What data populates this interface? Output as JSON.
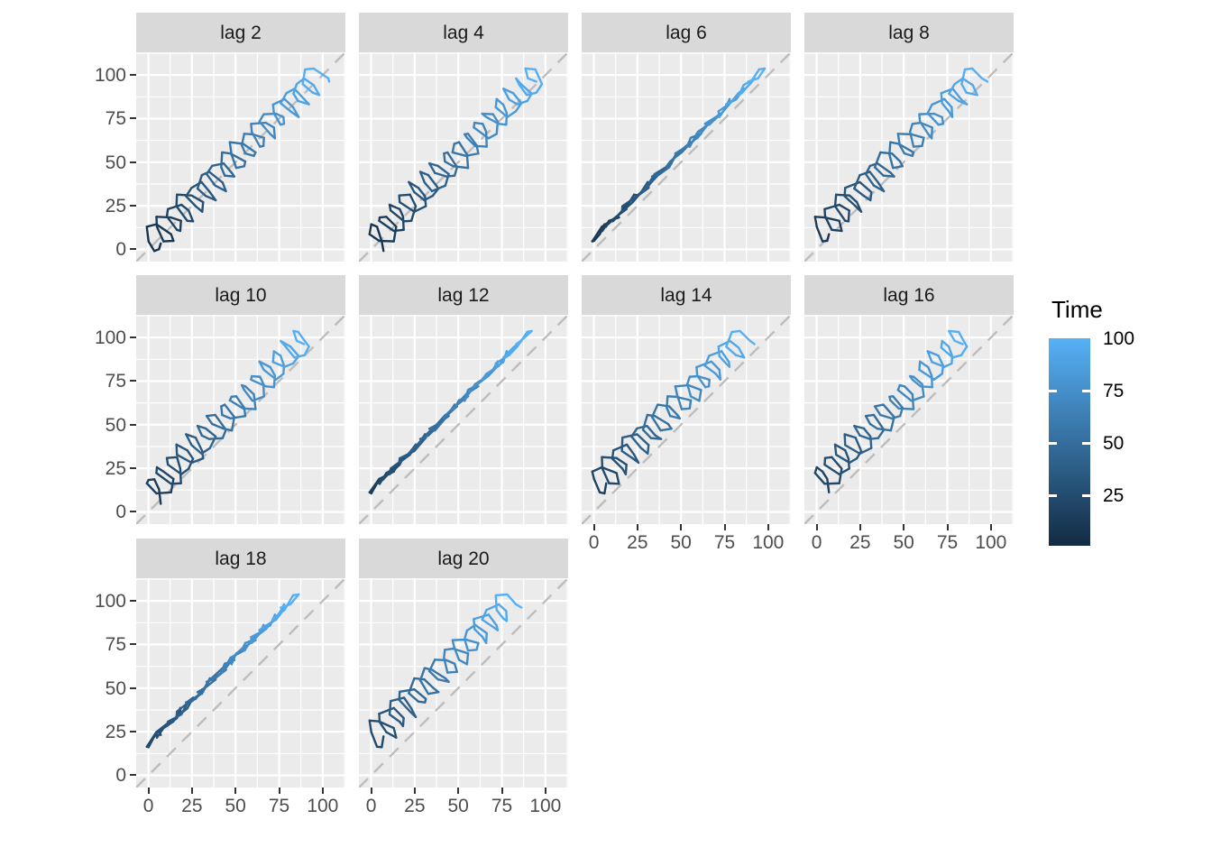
{
  "chart_data": {
    "type": "line",
    "subtype": "lag-plot-matrix",
    "title": "",
    "xlabel": "",
    "ylabel": "",
    "grid": true,
    "facets": [
      {
        "label": "lag 2",
        "lag": 2
      },
      {
        "label": "lag 4",
        "lag": 4
      },
      {
        "label": "lag 6",
        "lag": 6
      },
      {
        "label": "lag 8",
        "lag": 8
      },
      {
        "label": "lag 10",
        "lag": 10
      },
      {
        "label": "lag 12",
        "lag": 12
      },
      {
        "label": "lag 14",
        "lag": 14
      },
      {
        "label": "lag 16",
        "lag": 16
      },
      {
        "label": "lag 18",
        "lag": 18
      },
      {
        "label": "lag 20",
        "lag": 20
      }
    ],
    "time": [
      1,
      2,
      3,
      4,
      5,
      6,
      7,
      8,
      9,
      10,
      11,
      12,
      13,
      14,
      15,
      16,
      17,
      18,
      19,
      20,
      21,
      22,
      23,
      24,
      25,
      26,
      27,
      28,
      29,
      30,
      31,
      32,
      33,
      34,
      35,
      36,
      37,
      38,
      39,
      40,
      41,
      42,
      43,
      44,
      45,
      46,
      47,
      48,
      49,
      50,
      51,
      52,
      53,
      54,
      55,
      56,
      57,
      58,
      59,
      60,
      61,
      62,
      63,
      64,
      65,
      66,
      67,
      68,
      69,
      70,
      71,
      72,
      73,
      74,
      75,
      76,
      77,
      78,
      79,
      80,
      81,
      82,
      83,
      84,
      85,
      86,
      87,
      88,
      89,
      90,
      91,
      92,
      93,
      94,
      95,
      96,
      97,
      98,
      99,
      100
    ],
    "values": [
      7.1,
      6.1,
      3.4,
      0.1,
      -0.9,
      4.6,
      13,
      14.4,
      8.7,
      4.9,
      4.6,
      13,
      18.7,
      18.3,
      16.4,
      10.6,
      11.2,
      18.9,
      23.1,
      25.6,
      22.3,
      16.1,
      16.4,
      24.8,
      31.4,
      30.9,
      27.1,
      21.6,
      24.8,
      30.5,
      35.3,
      38.6,
      32.8,
      28.2,
      30.7,
      34.9,
      42.6,
      44.5,
      38.3,
      33.4,
      36.6,
      43.2,
      47.9,
      49.3,
      43.8,
      41.8,
      42.3,
      47.1,
      55.6,
      55,
      50.4,
      47.7,
      46.7,
      54.4,
      61.5,
      60.5,
      55.6,
      53.6,
      55,
      59.7,
      66.3,
      66,
      64,
      59.3,
      58.9,
      67.4,
      72,
      72.6,
      69.9,
      63.7,
      66.2,
      73.3,
      77.5,
      77.8,
      75.8,
      72,
      71.5,
      78.1,
      83,
      86.2,
      81.5,
      75.9,
      79.2,
      83.8,
      89.6,
      92.1,
      85.9,
      83.2,
      85.1,
      89.3,
      94.8,
      98,
      94.2,
      88.5,
      89.9,
      94.8,
      103.2,
      103.7,
      98.1,
      96.2
    ],
    "value_limits": [
      -7,
      113
    ],
    "axis_ticks": [
      0,
      25,
      50,
      75,
      100
    ],
    "axis_tick_labels": [
      "0",
      "25",
      "50",
      "75",
      "100"
    ],
    "minor_ticks": [
      12.5,
      37.5,
      62.5,
      87.5,
      112.5
    ],
    "legend": {
      "title": "Time",
      "position": "right",
      "limits": [
        1,
        100
      ],
      "ticks": [
        100,
        75,
        50,
        25
      ],
      "tick_labels": [
        "100",
        "75",
        "50",
        "25"
      ],
      "marked_ticks": [
        75,
        50,
        25
      ]
    },
    "reference_line": {
      "slope": 1,
      "intercept": 0,
      "style": "dashed",
      "color": "#BDBDBD"
    },
    "colors": {
      "gradient_low": "#132B43",
      "gradient_high": "#56B1F7",
      "panel_background": "#EBEBEB",
      "strip_background": "#D9D9D9",
      "strip_text": "#1A1A1A",
      "axis_text": "#4D4D4D",
      "gridline": "#FFFFFF",
      "tick_mark": "#333333",
      "legend_text": "#000000",
      "plot_background": "#FFFFFF"
    }
  }
}
